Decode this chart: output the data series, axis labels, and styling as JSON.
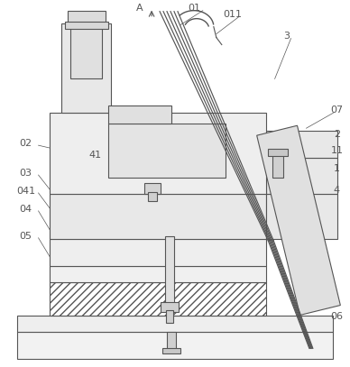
{
  "bg_color": "#ffffff",
  "line_color": "#555555",
  "fig_width": 3.88,
  "fig_height": 4.07,
  "dpi": 100
}
